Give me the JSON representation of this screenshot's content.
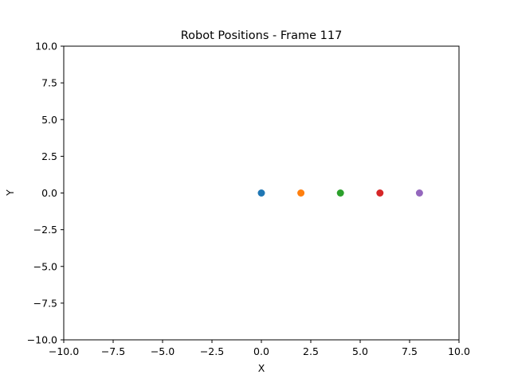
{
  "chart_data": {
    "type": "scatter",
    "title": "Robot Positions - Frame 117",
    "xlabel": "X",
    "ylabel": "Y",
    "xlim": [
      -10,
      10
    ],
    "ylim": [
      -10,
      10
    ],
    "xticks": [
      -10,
      -7.5,
      -5,
      -2.5,
      0,
      2.5,
      5,
      7.5,
      10
    ],
    "yticks": [
      -10,
      -7.5,
      -5,
      -2.5,
      0,
      2.5,
      5,
      7.5,
      10
    ],
    "xtick_labels": [
      "−10.0",
      "−7.5",
      "−5.0",
      "−2.5",
      "0.0",
      "2.5",
      "5.0",
      "7.5",
      "10.0"
    ],
    "ytick_labels": [
      "−10.0",
      "−7.5",
      "−5.0",
      "−2.5",
      "0.0",
      "2.5",
      "5.0",
      "7.5",
      "10.0"
    ],
    "grid": false,
    "points": [
      {
        "x": 0,
        "y": 0,
        "color": "#1f77b4"
      },
      {
        "x": 2,
        "y": 0,
        "color": "#ff7f0e"
      },
      {
        "x": 4,
        "y": 0,
        "color": "#2ca02c"
      },
      {
        "x": 6,
        "y": 0,
        "color": "#d62728"
      },
      {
        "x": 8,
        "y": 0,
        "color": "#9467bd"
      }
    ]
  }
}
